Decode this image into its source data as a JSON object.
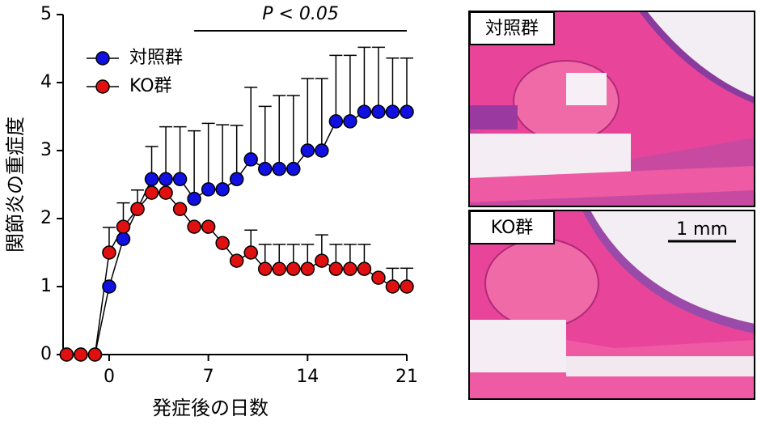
{
  "chart_data": {
    "type": "line",
    "annotation": "P < 0.05",
    "annotation_range": [
      6,
      21
    ],
    "xlabel": "発症後の日数",
    "ylabel": "関節炎の重症度",
    "x": [
      -3,
      -2,
      -1,
      0,
      1,
      2,
      3,
      4,
      5,
      6,
      7,
      8,
      9,
      10,
      11,
      12,
      13,
      14,
      15,
      16,
      17,
      18,
      19,
      20,
      21
    ],
    "series": [
      {
        "name": "対照群",
        "color": "#1010e0",
        "values": [
          0,
          0,
          0,
          1.0,
          1.7,
          2.14,
          2.58,
          2.58,
          2.58,
          2.29,
          2.43,
          2.43,
          2.58,
          2.87,
          2.73,
          2.73,
          2.73,
          3.0,
          3.0,
          3.43,
          3.43,
          3.57,
          3.57,
          3.57,
          3.57
        ],
        "errors": [
          null,
          null,
          null,
          null,
          null,
          null,
          0.48,
          0.77,
          0.77,
          1.0,
          0.97,
          0.95,
          0.79,
          1.06,
          0.92,
          1.08,
          1.08,
          1.06,
          1.06,
          0.97,
          0.97,
          0.95,
          0.95,
          0.79,
          0.79
        ]
      },
      {
        "name": "KO群",
        "color": "#e01010",
        "values": [
          0,
          0,
          0,
          1.5,
          1.88,
          2.14,
          2.38,
          2.38,
          2.14,
          1.88,
          1.88,
          1.64,
          1.38,
          1.5,
          1.26,
          1.26,
          1.26,
          1.26,
          1.38,
          1.26,
          1.26,
          1.26,
          1.13,
          1.0,
          1.0
        ],
        "errors": [
          null,
          null,
          null,
          0.37,
          0.35,
          0.28,
          null,
          null,
          null,
          null,
          null,
          null,
          null,
          0.33,
          0.36,
          0.36,
          0.36,
          0.36,
          0.38,
          0.36,
          0.36,
          0.36,
          null,
          0.27,
          0.27
        ]
      }
    ],
    "xlim": [
      -3.25,
      21
    ],
    "xticks": [
      0,
      7,
      14,
      21
    ],
    "ylim": [
      0,
      5
    ],
    "yticks": [
      0,
      1,
      2,
      3,
      4,
      5
    ],
    "legend": "upper left"
  },
  "images": [
    {
      "label": "対照群"
    },
    {
      "label": "KO群",
      "scale_bar": "1 mm"
    }
  ]
}
